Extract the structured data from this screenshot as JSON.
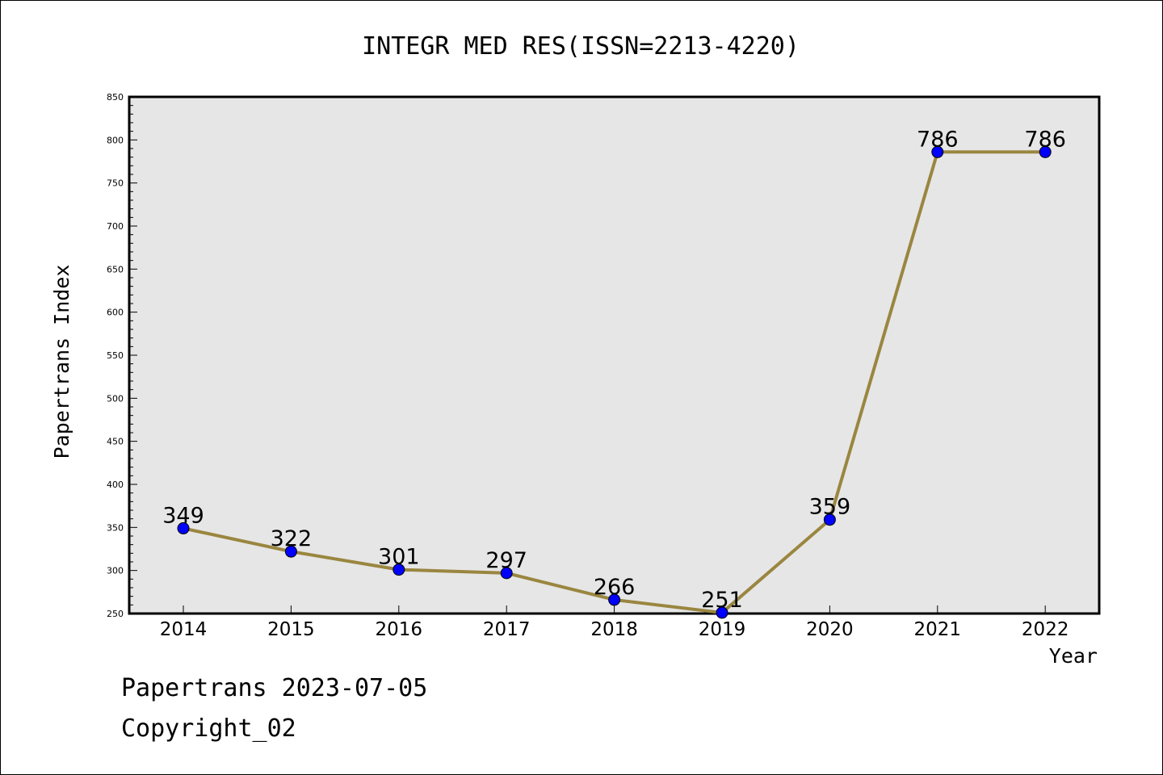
{
  "chart_data": {
    "type": "line",
    "title": "INTEGR MED RES(ISSN=2213-4220)",
    "xlabel": "Year",
    "ylabel": "Papertrans Index",
    "categories": [
      "2014",
      "2015",
      "2016",
      "2017",
      "2018",
      "2019",
      "2020",
      "2021",
      "2022"
    ],
    "series": [
      {
        "values": [
          349,
          322,
          301,
          297,
          266,
          251,
          359,
          786,
          786
        ]
      }
    ],
    "data_labels": [
      "349",
      "322",
      "301",
      "297",
      "266",
      "251",
      "359",
      "786",
      "786"
    ],
    "ylim": [
      250,
      850
    ],
    "yticks": [
      "250",
      "300",
      "350",
      "400",
      "450",
      "500",
      "550",
      "600",
      "650",
      "700",
      "750",
      "800",
      "850"
    ],
    "grid": false,
    "legend": "none",
    "colors": {
      "plot_background": "#e6e6e6",
      "line": "#9a8640",
      "marker": "#0000ff",
      "axes": "#000000"
    }
  },
  "footer": {
    "line1": "Papertrans 2023-07-05",
    "line2": "Copyright_02"
  }
}
